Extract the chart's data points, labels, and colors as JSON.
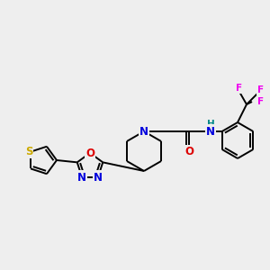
{
  "bg_color": "#eeeeee",
  "atom_colors": {
    "C": "#000000",
    "N": "#0000dd",
    "O": "#dd0000",
    "S": "#ccaa00",
    "F": "#ee00ee",
    "H": "#008888"
  },
  "bond_color": "#000000",
  "font_size": 7.5,
  "line_width": 1.4
}
